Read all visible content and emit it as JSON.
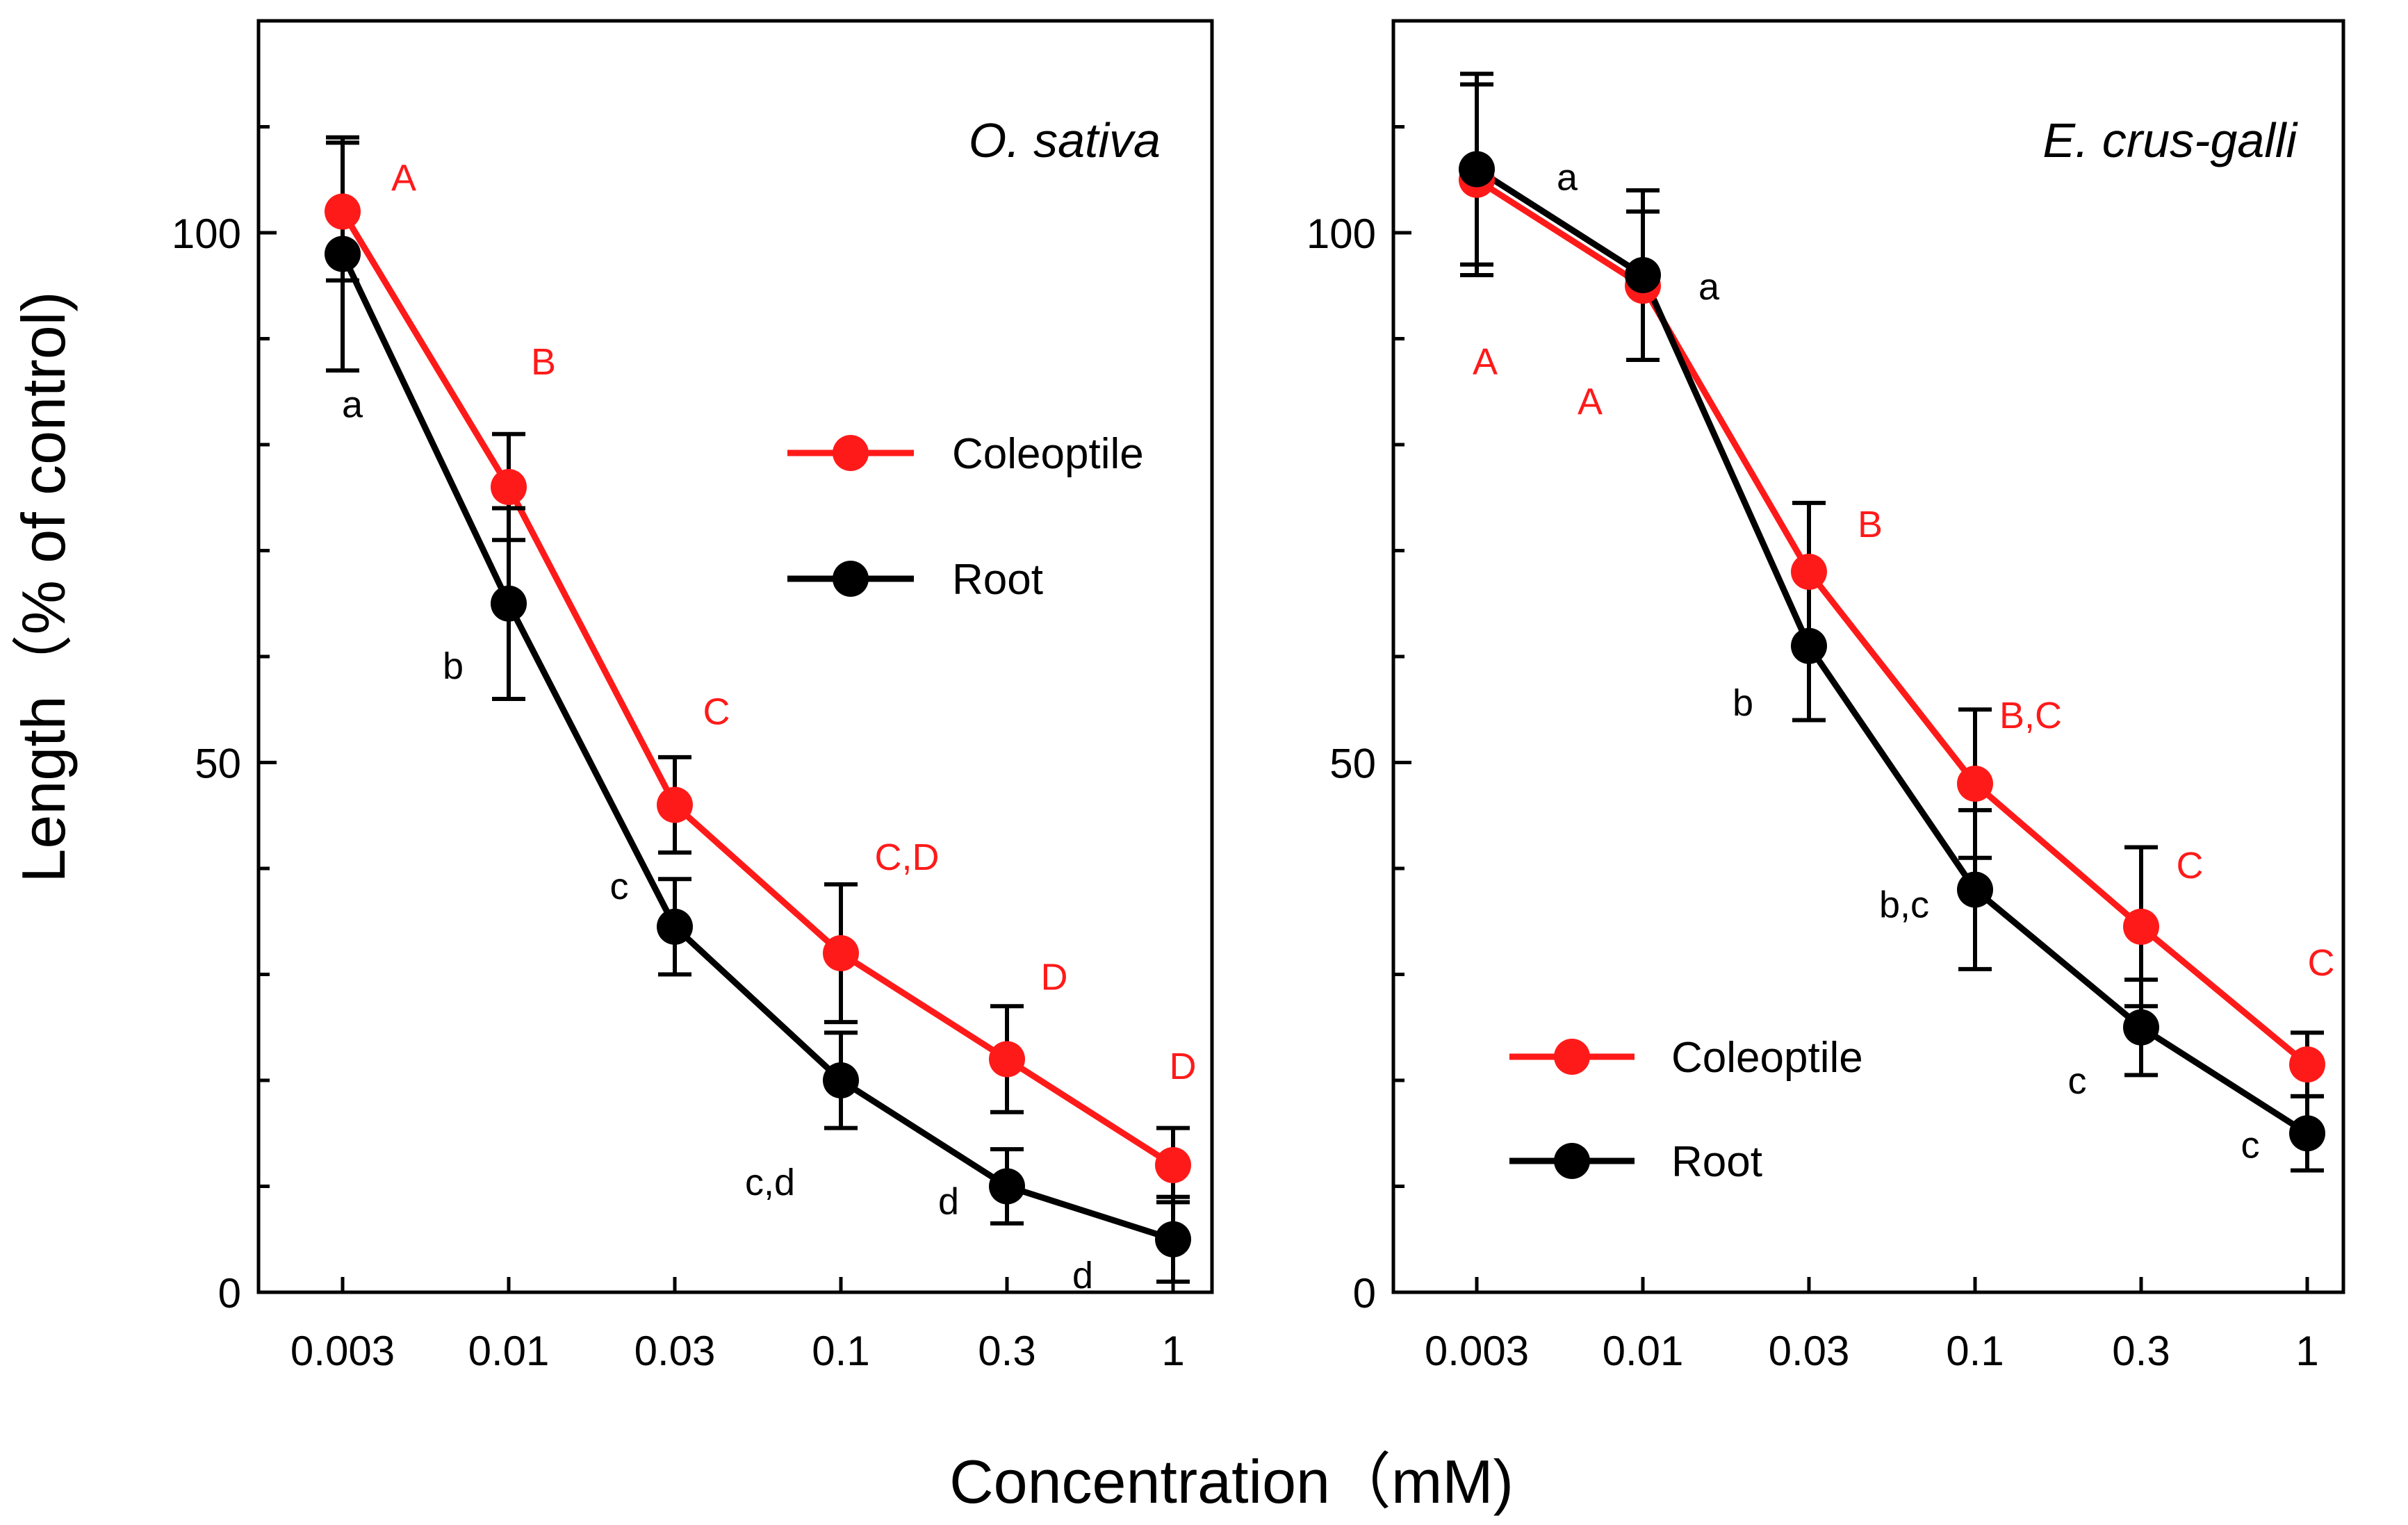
{
  "figure": {
    "xlabel": "Concentration（mM)",
    "ylabel": "Length（% of control)"
  },
  "colors": {
    "coleoptile": "#ff1a1a",
    "root": "#000000"
  },
  "chart_data": [
    {
      "type": "line",
      "title": "O. sativa",
      "x_categories": [
        "0.003",
        "0.01",
        "0.03",
        "0.1",
        "0.3",
        "1"
      ],
      "ylim": [
        0,
        120
      ],
      "yticks": [
        0,
        50,
        100
      ],
      "ytick_labels": [
        "0",
        "50",
        "100"
      ],
      "legend": {
        "placement": "center-right",
        "entries": [
          "Coleoptile",
          "Root"
        ]
      },
      "series": [
        {
          "name": "Coleoptile",
          "values": [
            102,
            76,
            46,
            32,
            22,
            12
          ],
          "errors": [
            6.5,
            5,
            4.5,
            6.5,
            5,
            3.5
          ],
          "labels": [
            "A",
            "B",
            "C",
            "C,D",
            "D",
            "D"
          ]
        },
        {
          "name": "Root",
          "values": [
            98,
            65,
            34.5,
            20,
            10,
            5
          ],
          "errors": [
            11,
            9,
            4.5,
            4.5,
            3.5,
            4
          ],
          "labels": [
            "a",
            "b",
            "c",
            "c,d",
            "d",
            "d"
          ]
        }
      ]
    },
    {
      "type": "line",
      "title": "E. crus-galli",
      "x_categories": [
        "0.003",
        "0.01",
        "0.03",
        "0.1",
        "0.3",
        "1"
      ],
      "ylim": [
        0,
        120
      ],
      "yticks": [
        0,
        50,
        100
      ],
      "ytick_labels": [
        "0",
        "50",
        "100"
      ],
      "legend": {
        "placement": "bottom-center",
        "entries": [
          "Coleoptile",
          "Root"
        ]
      },
      "series": [
        {
          "name": "Coleoptile",
          "values": [
            105,
            95,
            68,
            48,
            34.5,
            21.5
          ],
          "errors": [
            9,
            7,
            6.5,
            7,
            7.5,
            3
          ],
          "labels": [
            "A",
            "A",
            "B",
            "B,C",
            "C",
            "C"
          ]
        },
        {
          "name": "Root",
          "values": [
            106,
            96,
            61,
            38,
            25,
            15
          ],
          "errors": [
            9,
            8,
            7,
            7.5,
            4.5,
            3.5
          ],
          "labels": [
            "a",
            "a",
            "b",
            "b,c",
            "c",
            "c"
          ]
        }
      ]
    }
  ]
}
